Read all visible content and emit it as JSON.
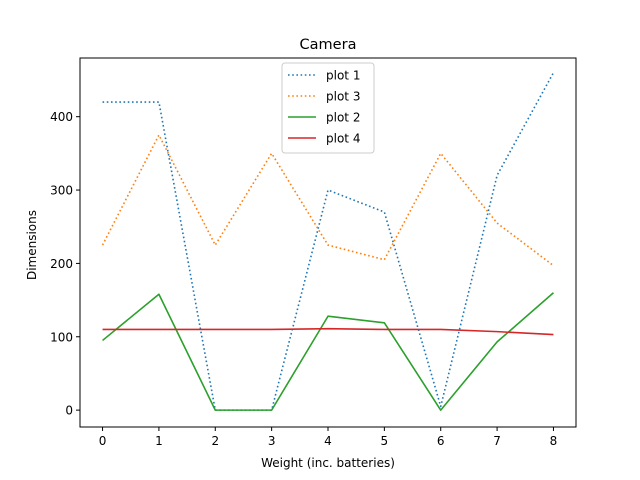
{
  "chart_data": {
    "type": "line",
    "title": "Camera",
    "xlabel": "Weight (inc. batteries)",
    "ylabel": "Dimensions",
    "x": [
      0,
      1,
      2,
      3,
      4,
      5,
      6,
      7,
      8
    ],
    "xticks": [
      0,
      1,
      2,
      3,
      4,
      5,
      6,
      7,
      8
    ],
    "yticks": [
      0,
      100,
      200,
      300,
      400
    ],
    "xlim": [
      -0.4,
      8.4
    ],
    "ylim": [
      -23,
      480
    ],
    "grid": false,
    "legend_position": "top-center",
    "series": [
      {
        "name": "plot 1",
        "values": [
          420,
          420,
          0,
          0,
          300,
          270,
          5,
          320,
          460
        ],
        "color": "#1f77b4",
        "style": "dotted"
      },
      {
        "name": "plot 3",
        "values": [
          225,
          375,
          225,
          350,
          225,
          205,
          350,
          255,
          197
        ],
        "color": "#ff7f0e",
        "style": "dotted"
      },
      {
        "name": "plot 2",
        "values": [
          95,
          158,
          0,
          0,
          128,
          119,
          0,
          93,
          160
        ],
        "color": "#2ca02c",
        "style": "solid"
      },
      {
        "name": "plot 4",
        "values": [
          110,
          110,
          110,
          110,
          111,
          110,
          110,
          107,
          103
        ],
        "color": "#d62728",
        "style": "solid"
      }
    ]
  }
}
